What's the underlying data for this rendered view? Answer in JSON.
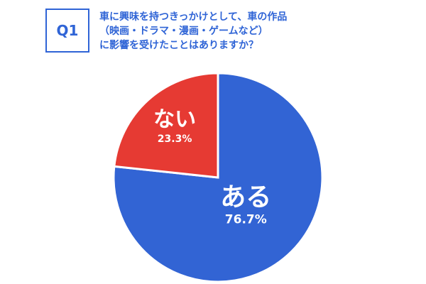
{
  "question": {
    "number": "Q1",
    "lines": [
      "車に興味を持つきっかけとして、車の作品",
      "（映画・ドラマ・漫画・ゲームなど）",
      "に影響を受けたことはありますか？"
    ]
  },
  "chart_data": {
    "type": "pie",
    "slices": [
      {
        "label": "ある",
        "value": 76.7,
        "value_label": "76.7%",
        "color": "#3264d4"
      },
      {
        "label": "ない",
        "value": 23.3,
        "value_label": "23.3%",
        "color": "#e63a33"
      }
    ]
  }
}
